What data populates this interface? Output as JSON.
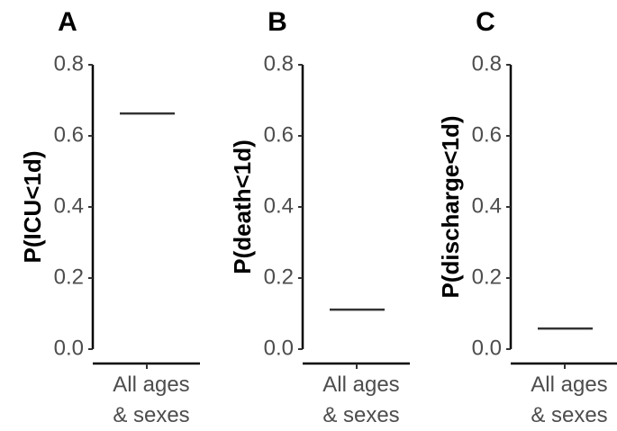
{
  "chart_data": [
    {
      "type": "point",
      "title": "A",
      "y_label": "P(ICU<1d)",
      "categories": [
        "All ages\n& sexes"
      ],
      "values": [
        0.663
      ],
      "color": "#333333",
      "ylim": [
        0,
        0.8
      ],
      "yticks": [
        {
          "value": 0,
          "label": "0.0"
        },
        0.2,
        0.4,
        0.6,
        0.8
      ]
    },
    {
      "type": "point",
      "title": "B",
      "y_label": "P(death<1d)",
      "categories": [
        "All ages\n& sexes"
      ],
      "values": [
        0.111
      ],
      "color": "#333333",
      "ylim": [
        0,
        0.8
      ],
      "yticks": [
        {
          "value": 0,
          "label": "0.0"
        },
        0.2,
        0.4,
        0.6,
        0.8
      ]
    },
    {
      "type": "point",
      "title": "C",
      "y_label": "P(discharge<1d)",
      "categories": [
        "All ages\n& sexes"
      ],
      "values": [
        0.058
      ],
      "color": "#333333",
      "ylim": [
        0,
        0.8
      ],
      "yticks": [
        {
          "value": 0,
          "label": "0.0"
        },
        0.2,
        0.4,
        0.6,
        0.8
      ]
    }
  ]
}
